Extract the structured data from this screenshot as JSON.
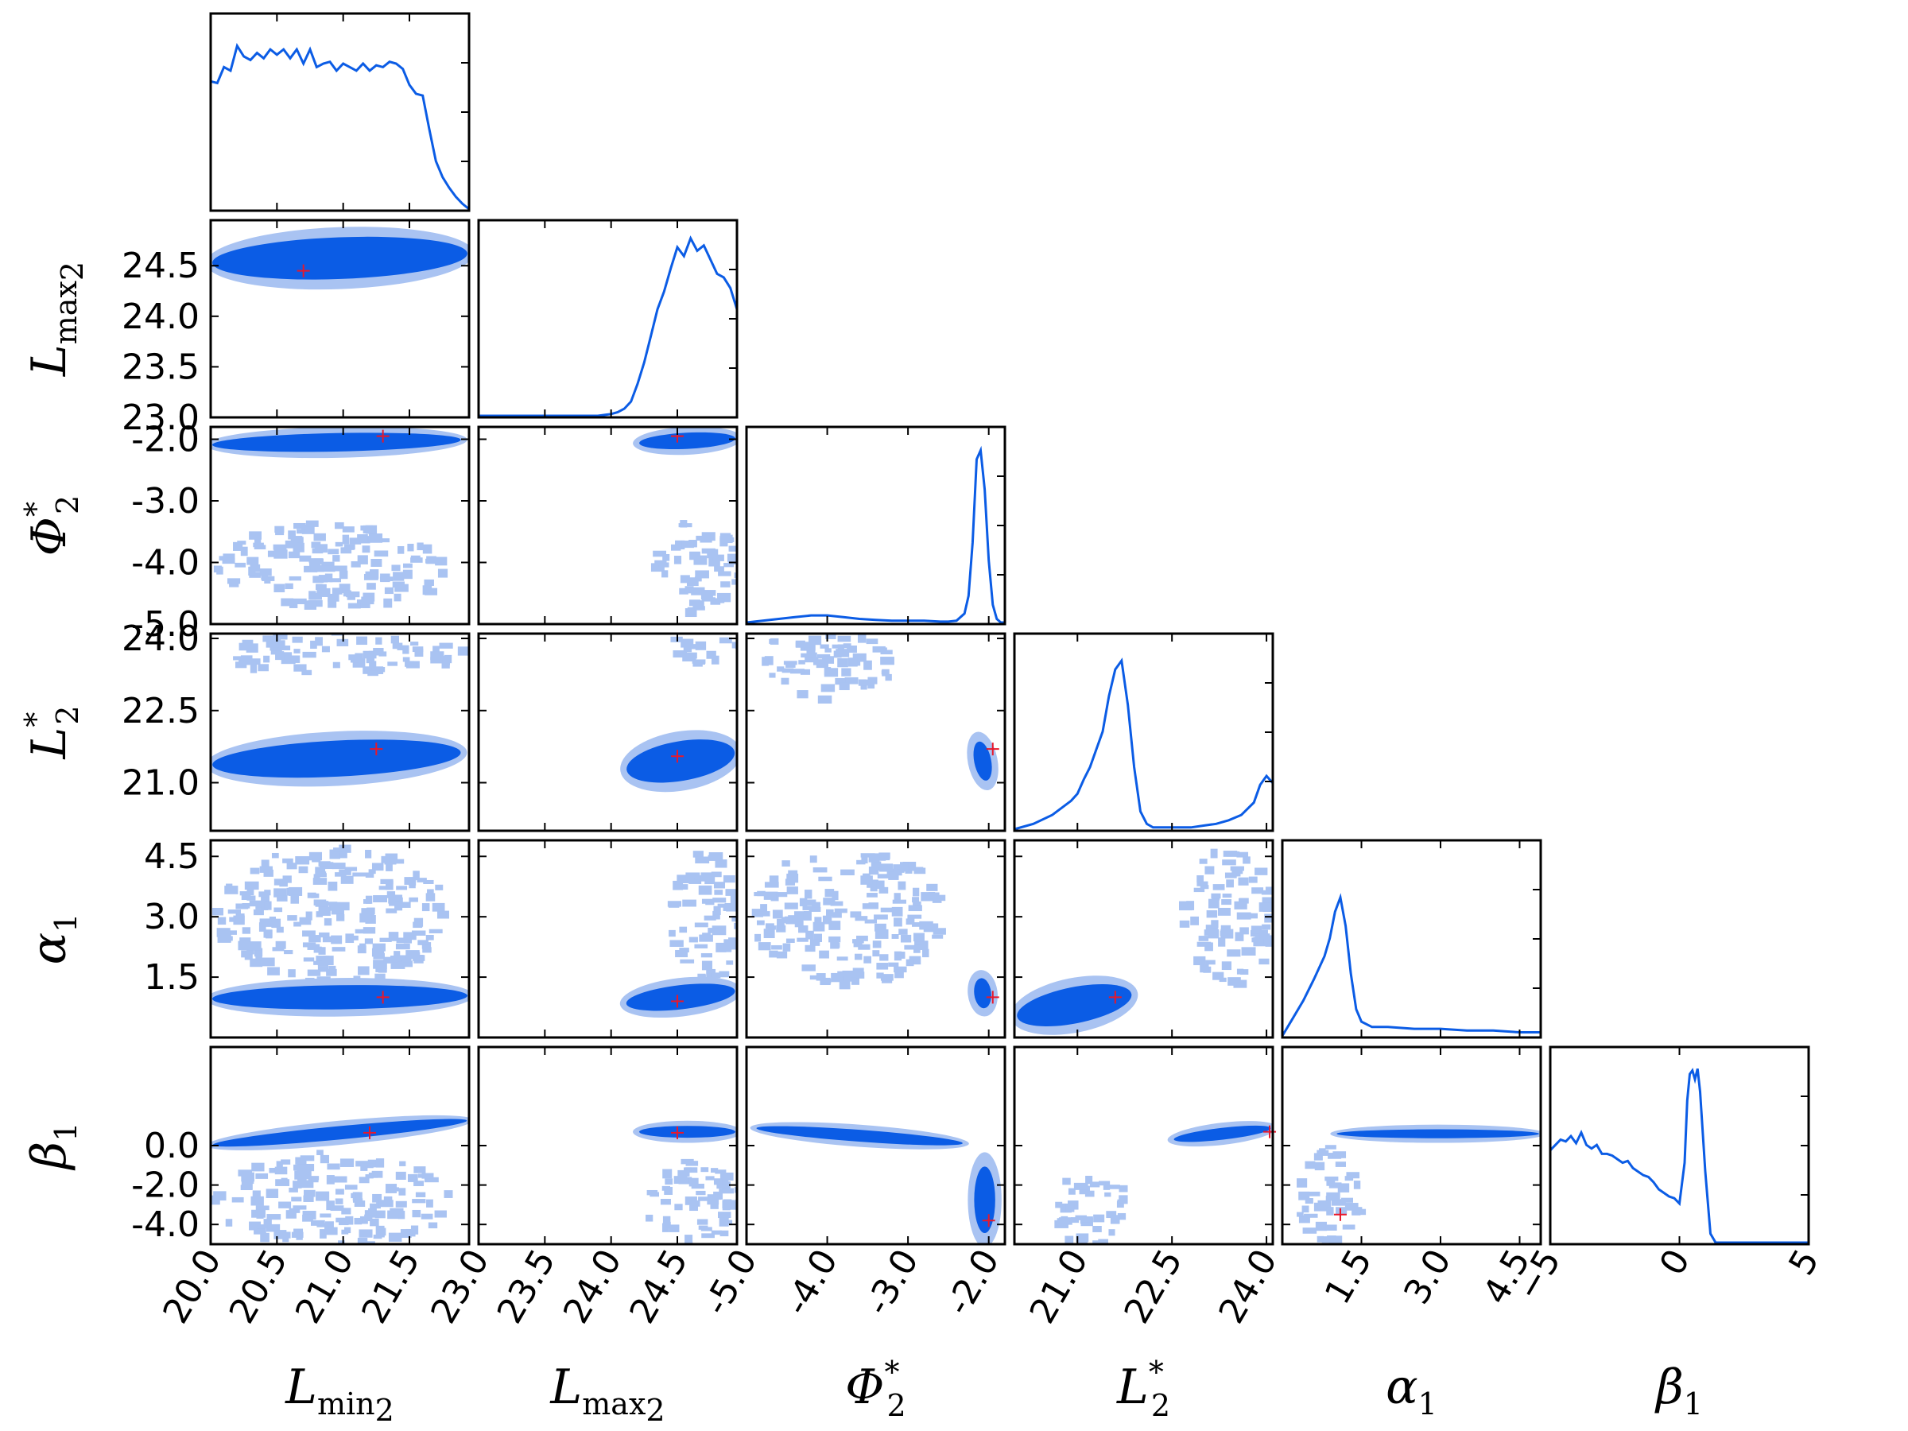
{
  "chart_data": {
    "type": "corner",
    "parameters": [
      {
        "id": "Lmin2",
        "sym": "L",
        "sub": "min",
        "sub2": "2",
        "sup": "",
        "range": [
          20.0,
          21.95
        ],
        "ticks": [
          "20.0",
          "20.5",
          "21.0",
          "21.5"
        ],
        "tickvals": [
          20.0,
          20.5,
          21.0,
          21.5
        ],
        "truth": 21.25
      },
      {
        "id": "Lmax2",
        "sym": "L",
        "sub": "max",
        "sub2": "2",
        "sup": "",
        "range": [
          23.0,
          24.95
        ],
        "ticks": [
          "23.0",
          "23.5",
          "24.0",
          "24.5"
        ],
        "tickvals": [
          23.0,
          23.5,
          24.0,
          24.5
        ],
        "truth": 24.45
      },
      {
        "id": "Phi2",
        "sym": "Φ",
        "sub": "2",
        "sub2": "",
        "sup": "*",
        "range": [
          -5.0,
          -1.8
        ],
        "ticks": [
          "-5.0",
          "-4.0",
          "-3.0",
          "-2.0"
        ],
        "tickvals": [
          -5.0,
          -4.0,
          -3.0,
          -2.0
        ],
        "truth": -2.0
      },
      {
        "id": "L2",
        "sym": "L",
        "sub": "2",
        "sub2": "",
        "sup": "*",
        "range": [
          20.0,
          24.1
        ],
        "ticks": [
          "21.0",
          "22.5",
          "24.0"
        ],
        "tickvals": [
          21.0,
          22.5,
          24.0
        ],
        "truth": 21.7
      },
      {
        "id": "alpha1",
        "sym": "α",
        "sub": "1",
        "sub2": "",
        "sup": "",
        "range": [
          0.0,
          4.9
        ],
        "ticks": [
          "1.5",
          "3.0",
          "4.5"
        ],
        "tickvals": [
          1.5,
          3.0,
          4.5
        ],
        "truth": 1.1
      },
      {
        "id": "beta1",
        "sym": "β",
        "sub": "1",
        "sub2": "",
        "sup": "",
        "range": [
          -5.0,
          5.0
        ],
        "ticks": [
          "−5",
          "0",
          "5"
        ],
        "tickvals": [
          -5,
          0,
          5
        ],
        "truth": null
      }
    ],
    "row_ticks": {
      "Lmax2": {
        "labels": [
          "23.0",
          "23.5",
          "24.0",
          "24.5"
        ],
        "values": [
          23.0,
          23.5,
          24.0,
          24.5
        ]
      },
      "Phi2": {
        "labels": [
          "-5.0",
          "-4.0",
          "-3.0",
          "-2.0"
        ],
        "values": [
          -5.0,
          -4.0,
          -3.0,
          -2.0
        ]
      },
      "L2": {
        "labels": [
          "21.0",
          "22.5",
          "24.0"
        ],
        "values": [
          21.0,
          22.5,
          24.0
        ]
      },
      "alpha1": {
        "labels": [
          "1.5",
          "3.0",
          "4.5"
        ],
        "values": [
          1.5,
          3.0,
          4.5
        ]
      },
      "beta1": {
        "labels": [
          "-4.0",
          "-2.0",
          "0.0"
        ],
        "values": [
          -4.0,
          -2.0,
          0.0
        ]
      }
    },
    "marginals": {
      "Lmin2": {
        "x": [
          20.0,
          20.05,
          20.1,
          20.15,
          20.2,
          20.25,
          20.3,
          20.35,
          20.4,
          20.45,
          20.5,
          20.55,
          20.6,
          20.65,
          20.7,
          20.75,
          20.8,
          20.85,
          20.9,
          20.95,
          21.0,
          21.05,
          21.1,
          21.15,
          21.2,
          21.25,
          21.3,
          21.35,
          21.4,
          21.45,
          21.5,
          21.55,
          21.6,
          21.65,
          21.7,
          21.75,
          21.8,
          21.85,
          21.9,
          21.95
        ],
        "y": [
          0.72,
          0.71,
          0.8,
          0.78,
          0.92,
          0.86,
          0.84,
          0.88,
          0.85,
          0.9,
          0.87,
          0.9,
          0.85,
          0.9,
          0.82,
          0.9,
          0.8,
          0.82,
          0.83,
          0.78,
          0.82,
          0.8,
          0.78,
          0.82,
          0.78,
          0.81,
          0.8,
          0.83,
          0.82,
          0.79,
          0.7,
          0.65,
          0.64,
          0.45,
          0.27,
          0.18,
          0.12,
          0.07,
          0.03,
          0.0
        ]
      },
      "Lmax2": {
        "x": [
          23.0,
          23.2,
          23.4,
          23.6,
          23.7,
          23.8,
          23.9,
          24.0,
          24.05,
          24.1,
          24.15,
          24.2,
          24.25,
          24.3,
          24.35,
          24.4,
          24.45,
          24.5,
          24.55,
          24.6,
          24.65,
          24.7,
          24.75,
          24.8,
          24.85,
          24.9,
          24.95
        ],
        "y": [
          0,
          0,
          0,
          0,
          0,
          0,
          0,
          0.01,
          0.02,
          0.04,
          0.08,
          0.18,
          0.3,
          0.45,
          0.6,
          0.7,
          0.83,
          0.95,
          0.9,
          1.0,
          0.93,
          0.96,
          0.88,
          0.8,
          0.78,
          0.72,
          0.6
        ]
      },
      "Phi2": {
        "x": [
          -5.0,
          -4.8,
          -4.6,
          -4.4,
          -4.2,
          -4.0,
          -3.8,
          -3.6,
          -3.4,
          -3.2,
          -3.0,
          -2.8,
          -2.6,
          -2.5,
          -2.4,
          -2.3,
          -2.25,
          -2.2,
          -2.15,
          -2.1,
          -2.05,
          -2.0,
          -1.95,
          -1.9,
          -1.85,
          -1.8
        ],
        "y": [
          0,
          0.01,
          0.02,
          0.03,
          0.04,
          0.04,
          0.03,
          0.02,
          0.015,
          0.01,
          0.01,
          0.01,
          0.005,
          0.005,
          0.01,
          0.05,
          0.15,
          0.45,
          0.92,
          0.97,
          0.75,
          0.35,
          0.1,
          0.02,
          0.0,
          0.0
        ]
      },
      "L2": {
        "x": [
          20.0,
          20.3,
          20.6,
          20.9,
          21.0,
          21.1,
          21.2,
          21.3,
          21.4,
          21.5,
          21.6,
          21.7,
          21.8,
          21.9,
          22.0,
          22.1,
          22.2,
          22.4,
          22.6,
          22.8,
          23.0,
          23.2,
          23.4,
          23.6,
          23.8,
          23.9,
          24.0,
          24.1
        ],
        "y": [
          0.0,
          0.03,
          0.08,
          0.16,
          0.2,
          0.28,
          0.35,
          0.45,
          0.55,
          0.75,
          0.9,
          0.95,
          0.7,
          0.35,
          0.1,
          0.03,
          0.01,
          0.01,
          0.01,
          0.01,
          0.02,
          0.03,
          0.05,
          0.08,
          0.15,
          0.25,
          0.3,
          0.26
        ]
      },
      "alpha1": {
        "x": [
          0.0,
          0.2,
          0.4,
          0.6,
          0.8,
          0.9,
          1.0,
          1.1,
          1.2,
          1.3,
          1.4,
          1.5,
          1.7,
          2.0,
          2.5,
          3.0,
          3.5,
          4.0,
          4.5,
          4.9
        ],
        "y": [
          0.0,
          0.1,
          0.2,
          0.32,
          0.45,
          0.55,
          0.7,
          0.78,
          0.62,
          0.35,
          0.15,
          0.08,
          0.05,
          0.05,
          0.04,
          0.04,
          0.03,
          0.03,
          0.02,
          0.02
        ]
      },
      "beta1": {
        "x": [
          -5.0,
          -4.8,
          -4.6,
          -4.4,
          -4.2,
          -4.0,
          -3.8,
          -3.6,
          -3.4,
          -3.2,
          -3.0,
          -2.8,
          -2.6,
          -2.4,
          -2.2,
          -2.0,
          -1.8,
          -1.6,
          -1.4,
          -1.2,
          -1.0,
          -0.8,
          -0.6,
          -0.4,
          -0.2,
          0.0,
          0.2,
          0.3,
          0.4,
          0.5,
          0.6,
          0.7,
          0.8,
          1.0,
          1.2,
          1.4,
          5.0
        ],
        "y": [
          0.52,
          0.55,
          0.58,
          0.57,
          0.6,
          0.56,
          0.62,
          0.55,
          0.53,
          0.55,
          0.5,
          0.5,
          0.49,
          0.47,
          0.45,
          0.46,
          0.42,
          0.4,
          0.38,
          0.37,
          0.34,
          0.3,
          0.28,
          0.26,
          0.25,
          0.22,
          0.45,
          0.8,
          0.95,
          0.97,
          0.92,
          0.98,
          0.85,
          0.4,
          0.05,
          0.0,
          0.0
        ]
      }
    },
    "joint": {
      "Lmax2|Lmin2": {
        "blobs": [
          {
            "x": [
              20.0,
              21.95
            ],
            "y": [
              24.3,
              24.85
            ],
            "slope": 0.15,
            "dense": true
          }
        ]
      },
      "Phi2|Lmin2": {
        "blobs": [
          {
            "x": [
              20.0,
              21.9
            ],
            "y": [
              -2.25,
              -1.85
            ],
            "slope": 0.08,
            "dense": true
          },
          {
            "x": [
              20.0,
              21.8
            ],
            "y": [
              -4.7,
              -3.3
            ],
            "slope": -0.4,
            "dense": false
          }
        ]
      },
      "Phi2|Lmax2": {
        "blobs": [
          {
            "x": [
              24.2,
              24.95
            ],
            "y": [
              -2.2,
              -1.85
            ],
            "slope": 0.2,
            "dense": true
          },
          {
            "x": [
              24.3,
              24.95
            ],
            "y": [
              -4.8,
              -3.2
            ],
            "slope": 0.0,
            "dense": false
          }
        ]
      },
      "L2|Lmin2": {
        "blobs": [
          {
            "x": [
              20.0,
              21.9
            ],
            "y": [
              21.0,
              22.0
            ],
            "slope": 0.2,
            "dense": true
          },
          {
            "x": [
              20.0,
              21.9
            ],
            "y": [
              23.3,
              24.2
            ],
            "slope": 0.1,
            "dense": false
          }
        ]
      },
      "L2|Lmax2": {
        "blobs": [
          {
            "x": [
              24.1,
              24.95
            ],
            "y": [
              20.9,
              22.0
            ],
            "slope": 0.8,
            "dense": true
          },
          {
            "x": [
              24.4,
              24.95
            ],
            "y": [
              23.5,
              24.2
            ],
            "slope": 0.0,
            "dense": false
          }
        ]
      },
      "L2|Phi2": {
        "blobs": [
          {
            "x": [
              -2.2,
              -1.95
            ],
            "y": [
              20.9,
              22.0
            ],
            "slope": 1.0,
            "dense": true
          },
          {
            "x": [
              -5.0,
              -3.2
            ],
            "y": [
              22.8,
              24.2
            ],
            "slope": -1.0,
            "dense": false
          }
        ]
      },
      "alpha1|Lmin2": {
        "blobs": [
          {
            "x": [
              20.0,
              21.95
            ],
            "y": [
              0.6,
              1.4
            ],
            "slope": 0.05,
            "dense": true
          },
          {
            "x": [
              20.0,
              21.8
            ],
            "y": [
              1.4,
              4.8
            ],
            "slope": 0.0,
            "dense": false
          }
        ]
      },
      "alpha1|Lmax2": {
        "blobs": [
          {
            "x": [
              24.1,
              24.95
            ],
            "y": [
              0.6,
              1.4
            ],
            "slope": 0.5,
            "dense": true
          },
          {
            "x": [
              24.4,
              24.95
            ],
            "y": [
              1.4,
              4.8
            ],
            "slope": 0.0,
            "dense": false
          }
        ]
      },
      "alpha1|Phi2": {
        "blobs": [
          {
            "x": [
              -2.2,
              -1.95
            ],
            "y": [
              0.6,
              1.6
            ],
            "slope": 0.5,
            "dense": true
          },
          {
            "x": [
              -5.0,
              -2.6
            ],
            "y": [
              1.4,
              4.8
            ],
            "slope": -1.0,
            "dense": false
          }
        ]
      },
      "alpha1|L2": {
        "blobs": [
          {
            "x": [
              20.0,
              21.9
            ],
            "y": [
              0.2,
              1.4
            ],
            "slope": 1.0,
            "dense": true
          },
          {
            "x": [
              22.6,
              24.1
            ],
            "y": [
              1.4,
              4.8
            ],
            "slope": 1.0,
            "dense": false
          }
        ]
      },
      "beta1|Lmin2": {
        "blobs": [
          {
            "x": [
              20.0,
              21.95
            ],
            "y": [
              0.2,
              1.1
            ],
            "slope": 0.4,
            "dense": true
          },
          {
            "x": [
              20.0,
              21.8
            ],
            "y": [
              -5.0,
              -0.2
            ],
            "slope": 0.0,
            "dense": false
          }
        ]
      },
      "beta1|Lmax2": {
        "blobs": [
          {
            "x": [
              24.2,
              24.95
            ],
            "y": [
              0.3,
              1.1
            ],
            "slope": 0.0,
            "dense": true
          },
          {
            "x": [
              24.2,
              24.95
            ],
            "y": [
              -5.0,
              -0.5
            ],
            "slope": 0.0,
            "dense": false
          }
        ]
      },
      "beta1|Phi2": {
        "blobs": [
          {
            "x": [
              -4.9,
              -2.3
            ],
            "y": [
              0.1,
              0.9
            ],
            "slope": -0.3,
            "dense": true
          },
          {
            "x": [
              -2.2,
              -1.9
            ],
            "y": [
              -5.0,
              -0.5
            ],
            "slope": 0.0,
            "dense": true
          }
        ]
      },
      "beta1|L2": {
        "blobs": [
          {
            "x": [
              22.5,
              24.1
            ],
            "y": [
              0.2,
              1.0
            ],
            "slope": 0.5,
            "dense": true
          },
          {
            "x": [
              20.5,
              21.8
            ],
            "y": [
              -5.0,
              -1.2
            ],
            "slope": 0.0,
            "dense": false
          }
        ]
      },
      "beta1|alpha1": {
        "blobs": [
          {
            "x": [
              1.0,
              4.9
            ],
            "y": [
              0.3,
              0.9
            ],
            "slope": 0.0,
            "dense": true
          },
          {
            "x": [
              0.2,
              1.4
            ],
            "y": [
              -5.0,
              0.3
            ],
            "slope": 0.0,
            "dense": false
          }
        ]
      }
    },
    "truths_2d": {
      "Lmax2|Lmin2": [
        20.7,
        24.45
      ],
      "Phi2|Lmin2": [
        21.3,
        -1.95
      ],
      "Phi2|Lmax2": [
        24.5,
        -1.95
      ],
      "L2|Lmin2": [
        21.25,
        21.7
      ],
      "L2|Lmax2": [
        24.5,
        21.55
      ],
      "L2|Phi2": [
        -1.95,
        21.7
      ],
      "alpha1|Lmin2": [
        21.3,
        1.0
      ],
      "alpha1|Lmax2": [
        24.5,
        0.9
      ],
      "alpha1|Phi2": [
        -1.95,
        1.0
      ],
      "alpha1|L2": [
        21.6,
        1.0
      ],
      "beta1|Lmin2": [
        21.2,
        0.65
      ],
      "beta1|Lmax2": [
        24.5,
        0.65
      ],
      "beta1|Phi2": [
        -2.0,
        -3.8
      ],
      "beta1|L2": [
        24.05,
        0.7
      ],
      "beta1|alpha1": [
        1.1,
        -3.5
      ]
    },
    "colors": {
      "line": "#0b5ce5",
      "dense": "#0b5ce5",
      "light": "#a9c3f2",
      "truth": "#e8182b",
      "frame": "#000000"
    }
  }
}
